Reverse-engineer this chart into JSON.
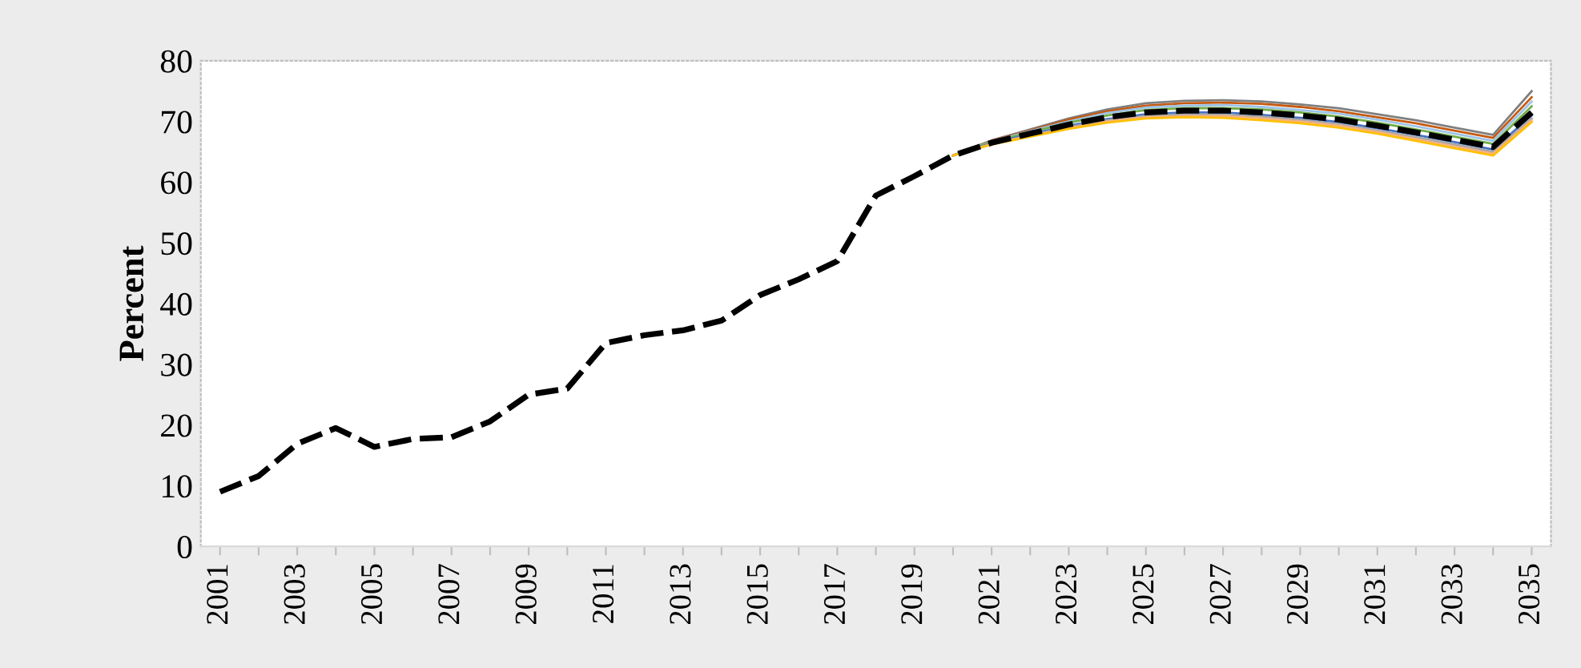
{
  "chart_data": {
    "type": "line",
    "ylabel": "Percent",
    "categories": [
      "2001",
      null,
      "2003",
      null,
      "2005",
      null,
      "2007",
      null,
      "2009",
      null,
      "2011",
      null,
      "2013",
      null,
      "2015",
      null,
      "2017",
      null,
      "2019",
      null,
      "2021",
      null,
      "2023",
      null,
      "2025",
      null,
      "2027",
      null,
      "2029",
      null,
      "2031",
      null,
      "2033",
      null,
      "2035"
    ],
    "ylim": [
      0,
      80
    ],
    "yticks": [
      0,
      10,
      20,
      30,
      40,
      50,
      60,
      70,
      80
    ],
    "grid": false,
    "marker": "none",
    "series": [
      {
        "color": "#7f7f7f",
        "line_style": "solid",
        "values": [
          null,
          null,
          null,
          null,
          null,
          null,
          null,
          null,
          null,
          null,
          null,
          null,
          null,
          null,
          null,
          null,
          null,
          null,
          null,
          64.4,
          66.9,
          68.7,
          70.5,
          72.0,
          73.0,
          73.4,
          73.5,
          73.3,
          72.8,
          72.2,
          71.2,
          70.2,
          69.0,
          67.8,
          75.0
        ]
      },
      {
        "color": "#c55a11",
        "line_style": "solid",
        "values": [
          null,
          null,
          null,
          null,
          null,
          null,
          null,
          null,
          null,
          null,
          null,
          null,
          null,
          null,
          null,
          null,
          null,
          null,
          null,
          64.4,
          66.8,
          68.5,
          70.3,
          71.7,
          72.6,
          73.0,
          73.1,
          72.9,
          72.4,
          71.7,
          70.7,
          69.7,
          68.5,
          67.3,
          74.0
        ]
      },
      {
        "color": "#9dc3e6",
        "line_style": "solid",
        "values": [
          null,
          null,
          null,
          null,
          null,
          null,
          null,
          null,
          null,
          null,
          null,
          null,
          null,
          null,
          null,
          null,
          null,
          null,
          null,
          64.4,
          66.7,
          68.4,
          70.0,
          71.4,
          72.3,
          72.6,
          72.7,
          72.4,
          71.9,
          71.3,
          70.3,
          69.2,
          68.0,
          66.8,
          73.3
        ]
      },
      {
        "color": "#70ad47",
        "line_style": "solid",
        "values": [
          null,
          null,
          null,
          null,
          null,
          null,
          null,
          null,
          null,
          null,
          null,
          null,
          null,
          null,
          null,
          null,
          null,
          null,
          null,
          64.4,
          66.6,
          68.2,
          69.8,
          71.0,
          71.9,
          72.2,
          72.2,
          72.0,
          71.5,
          70.8,
          69.8,
          68.7,
          67.5,
          66.3,
          72.5
        ]
      },
      {
        "color": "#4472c4",
        "line_style": "solid",
        "values": [
          null,
          null,
          null,
          null,
          null,
          null,
          null,
          null,
          null,
          null,
          null,
          null,
          null,
          null,
          null,
          null,
          null,
          null,
          null,
          64.4,
          66.4,
          67.9,
          69.3,
          70.4,
          71.2,
          71.5,
          71.5,
          71.1,
          70.6,
          69.9,
          68.9,
          67.8,
          66.6,
          65.4,
          71.0
        ]
      },
      {
        "color": "#a5a5a5",
        "line_style": "solid",
        "values": [
          null,
          null,
          null,
          null,
          null,
          null,
          null,
          null,
          null,
          null,
          null,
          null,
          null,
          null,
          null,
          null,
          null,
          null,
          null,
          64.4,
          66.3,
          67.7,
          69.1,
          70.2,
          70.9,
          71.2,
          71.1,
          70.8,
          70.3,
          69.5,
          68.5,
          67.4,
          66.2,
          65.0,
          70.5
        ]
      },
      {
        "color": "#f4b183",
        "line_style": "solid",
        "values": [
          null,
          null,
          null,
          null,
          null,
          null,
          null,
          null,
          null,
          null,
          null,
          null,
          null,
          null,
          null,
          null,
          null,
          null,
          null,
          64.4,
          66.3,
          67.6,
          68.9,
          70.0,
          70.7,
          70.9,
          70.9,
          70.5,
          70.0,
          69.3,
          68.3,
          67.1,
          65.9,
          64.7,
          70.2
        ]
      },
      {
        "color": "#ffc000",
        "line_style": "solid",
        "values": [
          null,
          null,
          null,
          null,
          null,
          null,
          null,
          null,
          null,
          null,
          null,
          null,
          null,
          null,
          null,
          null,
          null,
          null,
          null,
          64.4,
          66.2,
          67.5,
          68.8,
          69.8,
          70.5,
          70.7,
          70.6,
          70.2,
          69.7,
          69.0,
          68.0,
          66.8,
          65.6,
          64.4,
          69.9
        ]
      },
      {
        "color": "#000000",
        "line_style": "dashed",
        "values": [
          9,
          11.6,
          16.9,
          19.5,
          16.4,
          17.7,
          18,
          20.6,
          25,
          26,
          33.5,
          34.8,
          35.6,
          37.2,
          41.4,
          44,
          47,
          57.8,
          61,
          64.4,
          66.5,
          68.0,
          69.5,
          70.7,
          71.5,
          71.8,
          71.8,
          71.5,
          71.0,
          70.3,
          69.3,
          68.2,
          67.0,
          65.8,
          71.5
        ]
      }
    ]
  }
}
